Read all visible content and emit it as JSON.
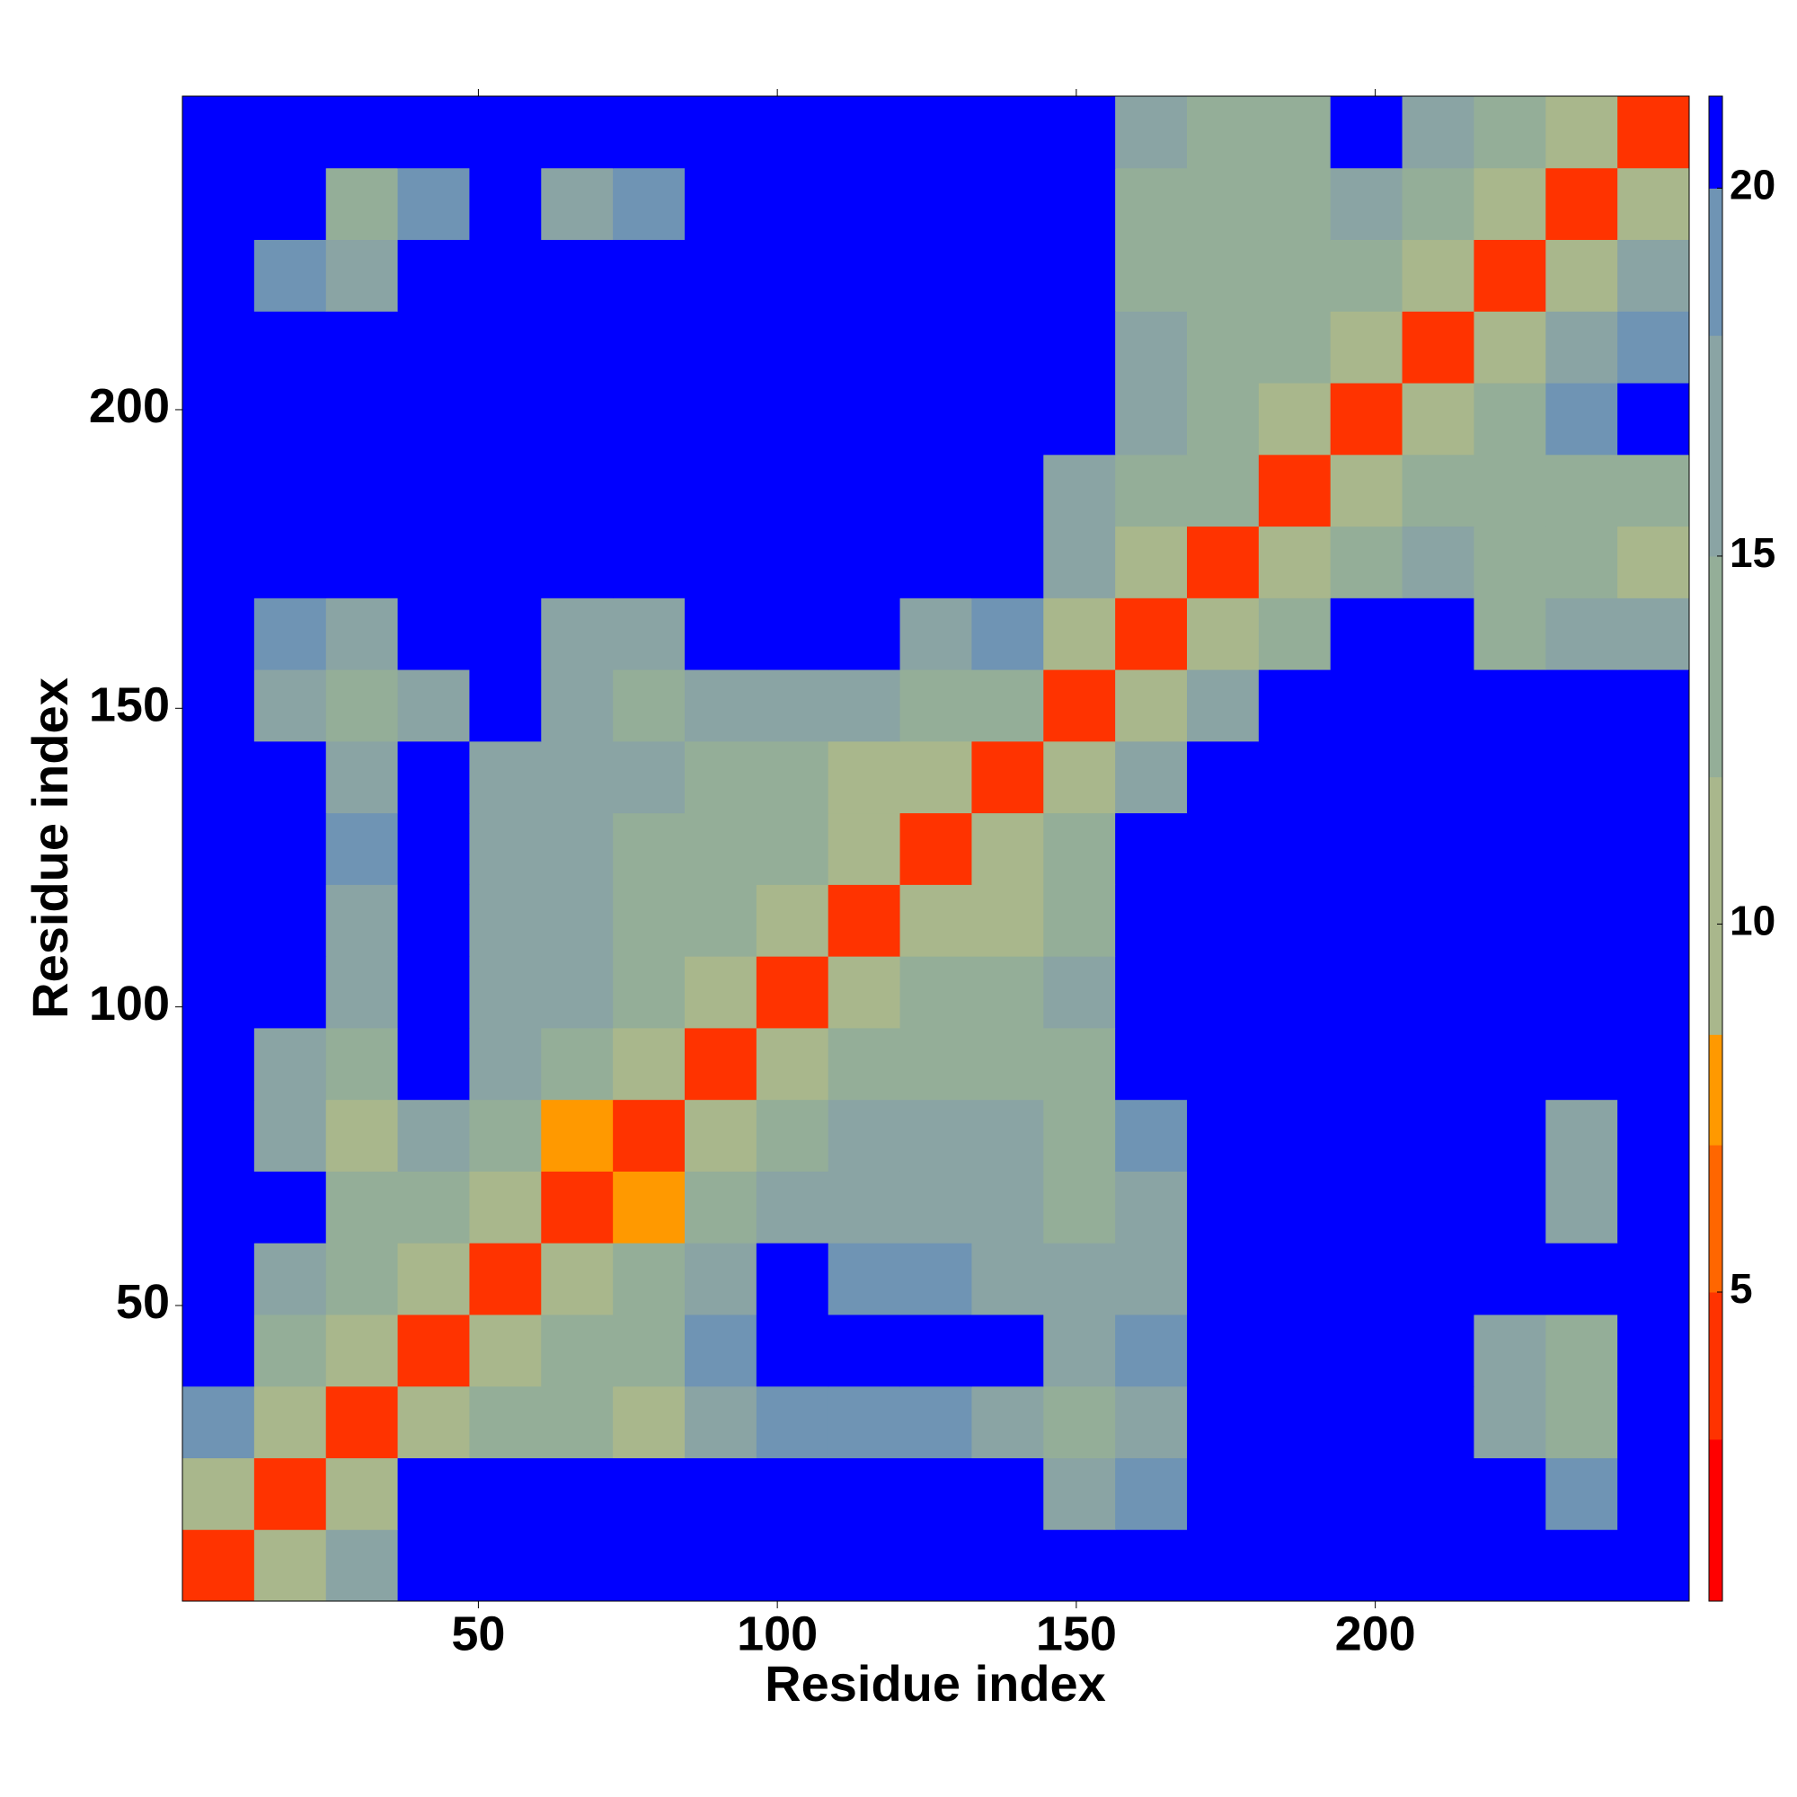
{
  "chart_data": {
    "type": "heatmap",
    "x_label": "Residue index",
    "y_label": "Residue index",
    "x_bins": [
      0.5,
      12.5,
      24.5,
      36.5,
      48.5,
      60.5,
      72.5,
      84.5,
      96.5,
      108.5,
      120.5,
      132.5,
      144.5,
      156.5,
      168.5,
      180.5,
      192.5,
      204.5,
      216.5,
      228.5,
      240.5,
      252.5
    ],
    "y_bins": [
      0.5,
      12.5,
      24.5,
      36.5,
      48.5,
      60.5,
      72.5,
      84.5,
      96.5,
      108.5,
      120.5,
      132.5,
      144.5,
      156.5,
      168.5,
      180.5,
      192.5,
      204.5,
      216.5,
      228.5,
      240.5,
      252.5
    ],
    "xlim": [
      0.5,
      252.5
    ],
    "ylim": [
      0.5,
      252.5
    ],
    "xticks": [
      50,
      100,
      150,
      200
    ],
    "yticks": [
      50,
      100,
      150,
      200
    ],
    "zlim": [
      0.8,
      21.25
    ],
    "colorbar_ticks": [
      5,
      10,
      15,
      20
    ],
    "colorscale": [
      [
        0.8,
        "#ff0000"
      ],
      [
        3,
        "#ff3300"
      ],
      [
        5,
        "#ff6600"
      ],
      [
        7,
        "#ff9900"
      ],
      [
        8.5,
        "#a9b78c"
      ],
      [
        12,
        "#94ae98"
      ],
      [
        15,
        "#8aa4a4"
      ],
      [
        18,
        "#6f94b4"
      ],
      [
        20,
        "#0000ff"
      ]
    ],
    "z": [
      [
        3,
        10,
        17,
        21,
        21,
        21,
        21,
        21,
        21,
        21,
        21,
        21,
        21,
        21,
        21,
        21,
        21,
        21,
        21,
        21,
        21
      ],
      [
        10,
        3,
        11,
        21,
        21,
        21,
        21,
        21,
        21,
        21,
        21,
        21,
        17,
        19,
        21,
        21,
        21,
        21,
        21,
        19,
        21
      ],
      [
        18,
        11,
        3,
        11,
        12,
        14,
        11,
        15,
        19,
        19,
        18,
        16,
        12,
        15,
        21,
        21,
        21,
        21,
        16,
        13,
        21
      ],
      [
        21,
        14,
        11,
        3,
        11,
        13,
        14,
        18,
        21,
        21,
        21,
        21,
        17,
        19,
        21,
        21,
        21,
        21,
        16,
        14,
        21
      ],
      [
        21,
        16,
        12,
        11,
        3,
        11,
        13,
        17,
        21,
        18,
        19,
        17,
        15,
        17,
        21,
        21,
        21,
        21,
        21,
        21,
        21
      ],
      [
        21,
        21,
        12,
        12,
        11,
        3,
        7,
        14,
        17,
        15,
        16,
        15,
        13,
        16,
        21,
        21,
        21,
        21,
        21,
        17,
        21
      ],
      [
        21,
        16,
        9,
        15,
        12,
        7,
        3,
        11,
        14,
        16,
        15,
        15,
        14,
        19,
        21,
        21,
        21,
        21,
        21,
        17,
        21
      ],
      [
        21,
        17,
        14,
        21,
        15,
        14,
        11,
        3,
        11,
        12,
        12,
        13,
        14,
        21,
        21,
        21,
        21,
        21,
        21,
        21,
        21
      ],
      [
        21,
        21,
        17,
        21,
        15,
        16,
        13,
        11,
        3,
        11,
        12,
        13,
        15,
        21,
        21,
        21,
        21,
        21,
        21,
        21,
        21
      ],
      [
        21,
        21,
        17,
        21,
        16,
        16,
        13,
        12,
        11,
        3,
        11,
        11,
        14,
        21,
        21,
        21,
        21,
        21,
        21,
        21,
        21
      ],
      [
        21,
        21,
        18,
        21,
        16,
        15,
        14,
        12,
        12,
        11,
        3,
        11,
        14,
        21,
        21,
        21,
        21,
        21,
        21,
        21,
        21
      ],
      [
        21,
        21,
        17,
        21,
        17,
        16,
        15,
        14,
        13,
        9,
        11,
        3,
        11,
        17,
        21,
        21,
        21,
        21,
        21,
        21,
        21
      ],
      [
        21,
        16,
        13,
        17,
        21,
        15,
        14,
        15,
        16,
        15,
        14,
        12,
        3,
        11,
        16,
        21,
        21,
        21,
        21,
        21,
        21
      ],
      [
        21,
        18,
        16,
        21,
        21,
        16,
        17,
        21,
        21,
        21,
        17,
        19,
        11,
        3,
        11,
        14,
        21,
        21,
        14,
        15,
        16
      ],
      [
        21,
        21,
        21,
        21,
        21,
        21,
        21,
        21,
        21,
        21,
        21,
        21,
        16,
        11,
        3,
        11,
        14,
        15,
        13,
        13,
        11
      ],
      [
        21,
        21,
        21,
        21,
        21,
        21,
        21,
        21,
        21,
        21,
        21,
        21,
        17,
        14,
        12,
        3,
        11,
        13,
        12,
        14,
        13
      ],
      [
        21,
        21,
        21,
        21,
        21,
        21,
        21,
        21,
        21,
        21,
        21,
        21,
        21,
        17,
        14,
        11,
        3,
        11,
        14,
        18,
        21
      ],
      [
        21,
        21,
        21,
        21,
        21,
        21,
        21,
        21,
        21,
        21,
        21,
        21,
        21,
        16,
        13,
        13,
        11,
        3,
        11,
        15,
        19
      ],
      [
        21,
        18,
        16,
        21,
        21,
        21,
        21,
        21,
        21,
        21,
        21,
        21,
        21,
        12,
        13,
        14,
        13,
        11,
        3,
        11,
        15
      ],
      [
        21,
        21,
        13,
        19,
        21,
        17,
        18,
        21,
        21,
        21,
        21,
        21,
        21,
        13,
        14,
        13,
        16,
        14,
        11,
        3,
        9
      ],
      [
        21,
        21,
        21,
        21,
        21,
        21,
        21,
        21,
        21,
        21,
        21,
        21,
        21,
        15,
        12,
        14,
        21,
        16,
        13,
        9,
        3
      ]
    ]
  }
}
